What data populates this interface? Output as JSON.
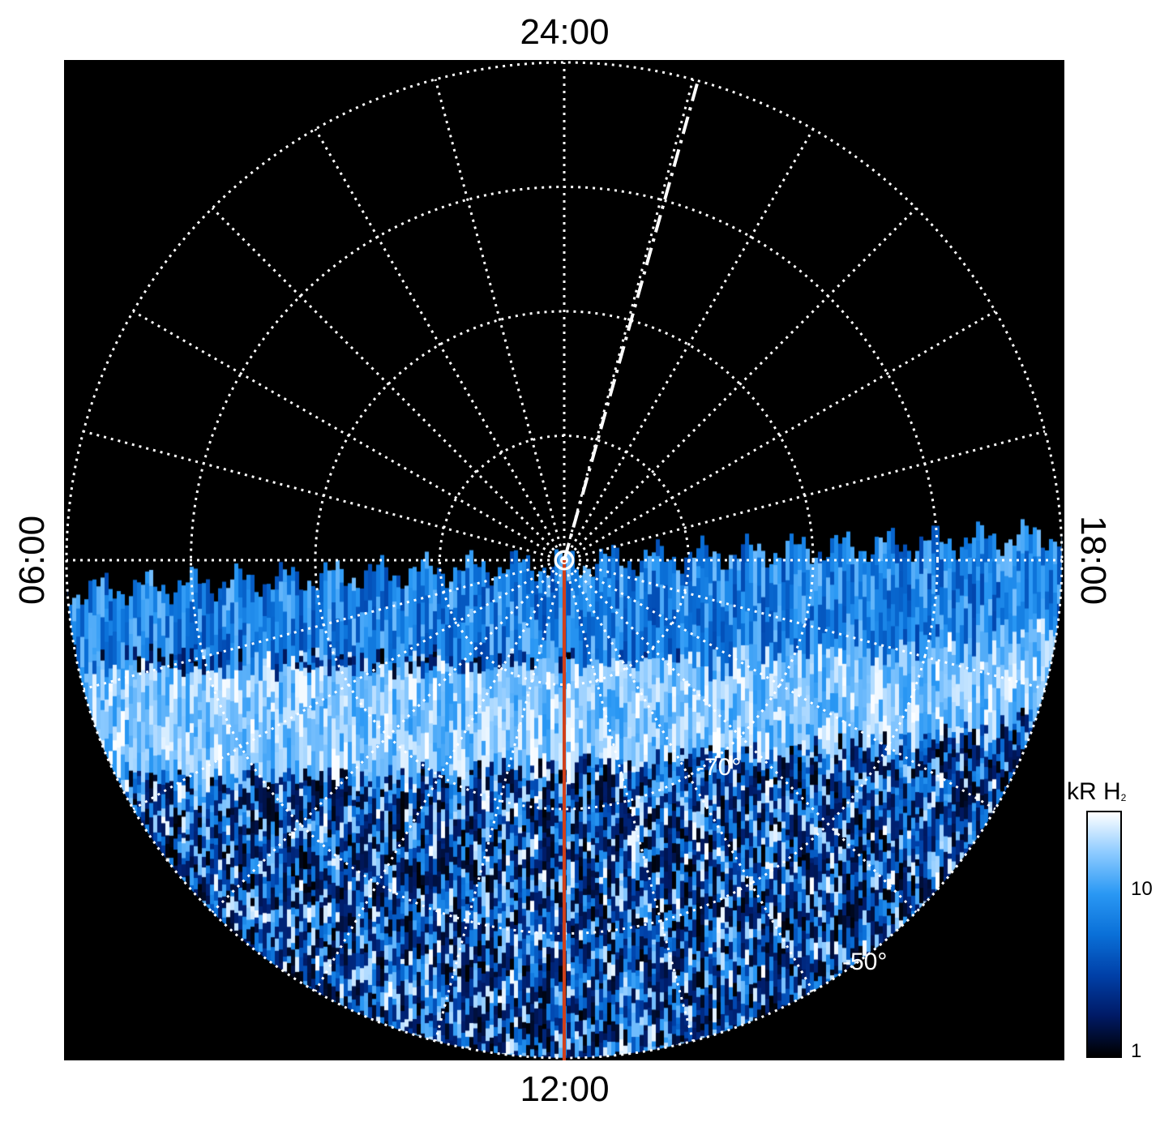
{
  "local_time_labels": {
    "top": "24:00",
    "bottom": "12:00",
    "left": "06:00",
    "right": "18:00"
  },
  "latitude_labels": [
    "-70°",
    "-50°"
  ],
  "colorbar": {
    "title": "kR H",
    "title_subscript": "2",
    "tick_labels": [
      "10",
      "1"
    ],
    "colors": [
      "#000000",
      "#001a66",
      "#0040a8",
      "#0a70d8",
      "#2a98f4",
      "#8ccaff",
      "#ffffff"
    ],
    "scale": "log"
  },
  "colors": {
    "background": "#000000",
    "grid": "#ffffff",
    "noon_meridian": "#d0401a"
  }
}
